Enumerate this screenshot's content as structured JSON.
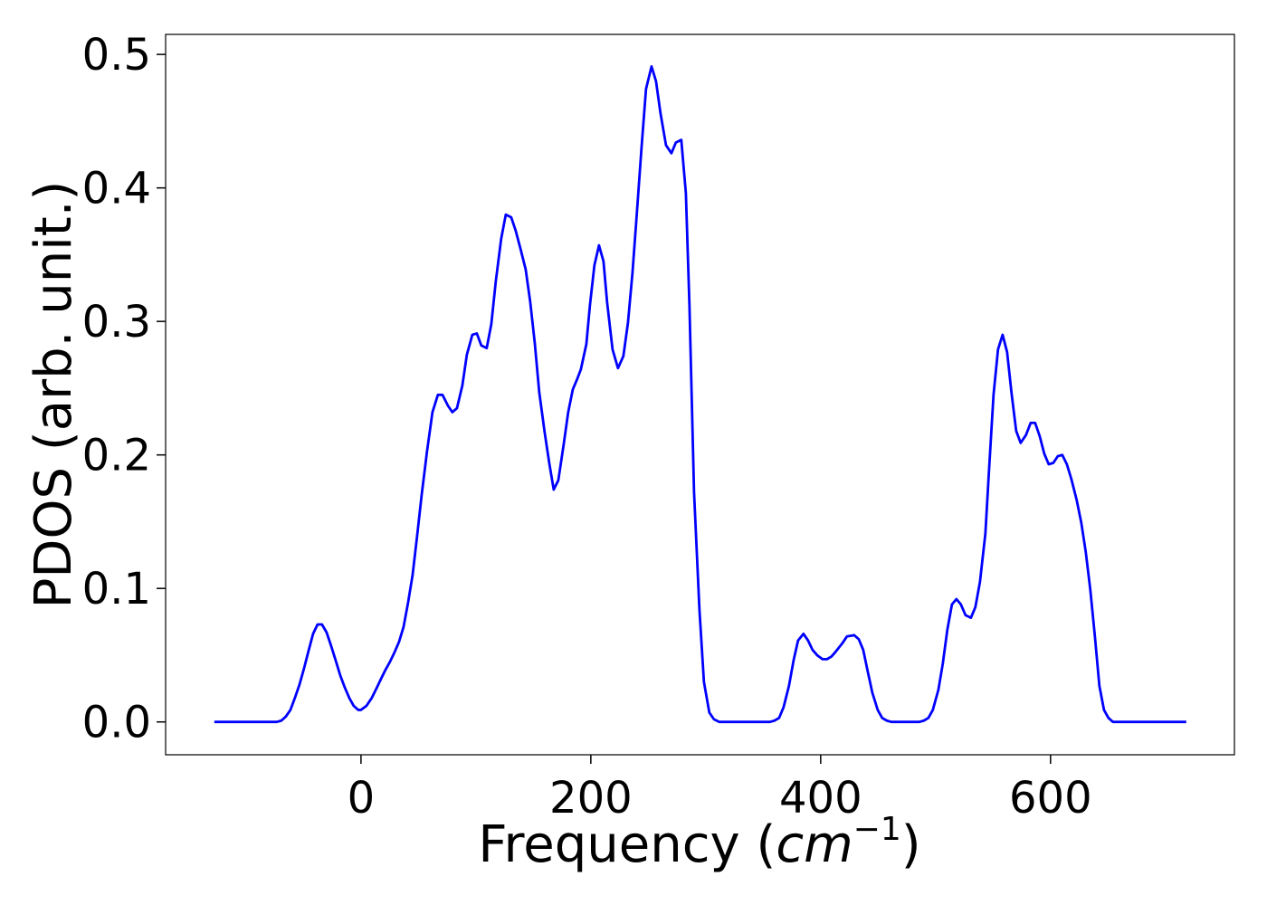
{
  "chart_data": {
    "type": "line",
    "x_label": {
      "text": "Frequency (",
      "unit": "cm",
      "exponent": "−1",
      "close": ")"
    },
    "y_label": "PDOS (arb. unit.)",
    "xlim": [
      -170,
      760
    ],
    "ylim": [
      -0.0246,
      0.515
    ],
    "xticks": [
      0,
      200,
      400,
      600
    ],
    "yticks": [
      {
        "value": 0,
        "label": "0.0"
      },
      0.1,
      0.2,
      0.3,
      0.4,
      0.5
    ],
    "x": [
      -127.6,
      -73.2,
      -69.3,
      -65.4,
      -61.4,
      -57.5,
      -53.5,
      -49.6,
      -45.7,
      -41.7,
      -37.8,
      -33.9,
      -29.9,
      -26.0,
      -22.0,
      -18.1,
      -14.2,
      -10.2,
      -6.3,
      -2.4,
      0,
      4.7,
      9.4,
      13.4,
      17.3,
      21.3,
      25.2,
      29.1,
      33.1,
      37.0,
      40.9,
      44.9,
      48.8,
      52.8,
      57.5,
      62.2,
      66.9,
      70.9,
      75.6,
      79.5,
      83.5,
      88.2,
      92.1,
      96.9,
      100.8,
      104.7,
      109.4,
      113.4,
      117.3,
      122.0,
      126.0,
      130.7,
      134.6,
      138.6,
      143.3,
      147.2,
      151.2,
      155.1,
      159.8,
      163.8,
      167.7,
      171.7,
      176.4,
      180.3,
      184.3,
      188.2,
      191.3,
      196.1,
      199.2,
      203.1,
      207.1,
      211.0,
      214.2,
      218.9,
      223.6,
      228.3,
      232.3,
      236.2,
      240.2,
      244.1,
      248.0,
      252.8,
      256.7,
      260.6,
      265.4,
      270.1,
      274.0,
      278.7,
      282.7,
      285.8,
      289.8,
      294.5,
      298.4,
      303.1,
      307.1,
      311.8,
      355.9,
      359.8,
      363.8,
      367.7,
      372.4,
      376.4,
      380.3,
      385.0,
      389.0,
      392.9,
      396.9,
      401.6,
      405.5,
      409.4,
      413.4,
      418.9,
      422.8,
      429.1,
      433.1,
      437.0,
      440.9,
      444.9,
      449.6,
      453.5,
      457.5,
      461.4,
      485.8,
      489.8,
      493.7,
      497.6,
      502.4,
      506.3,
      510.2,
      514.2,
      518.1,
      522.0,
      526.0,
      530.7,
      534.6,
      538.6,
      543.3,
      546.5,
      550.4,
      554.3,
      558.3,
      562.2,
      566.1,
      570.1,
      574.0,
      578.7,
      582.7,
      586.6,
      590.6,
      594.5,
      598.4,
      602.4,
      606.3,
      610.2,
      614.2,
      618.1,
      622.8,
      626.8,
      630.7,
      634.6,
      638.6,
      642.5,
      646.5,
      650.4,
      654.3,
      718.1
    ],
    "series": [
      {
        "color": "#0000ff",
        "values": [
          0,
          0,
          0.001,
          0.004,
          0.009,
          0.018,
          0.028,
          0.04,
          0.053,
          0.066,
          0.073,
          0.073,
          0.067,
          0.057,
          0.046,
          0.035,
          0.026,
          0.018,
          0.012,
          0.009,
          0.009,
          0.012,
          0.018,
          0.025,
          0.032,
          0.039,
          0.045,
          0.052,
          0.06,
          0.071,
          0.089,
          0.11,
          0.139,
          0.17,
          0.203,
          0.232,
          0.245,
          0.245,
          0.237,
          0.232,
          0.235,
          0.252,
          0.275,
          0.29,
          0.291,
          0.282,
          0.28,
          0.298,
          0.33,
          0.362,
          0.38,
          0.378,
          0.368,
          0.355,
          0.339,
          0.315,
          0.284,
          0.247,
          0.217,
          0.194,
          0.174,
          0.181,
          0.208,
          0.232,
          0.249,
          0.257,
          0.264,
          0.283,
          0.312,
          0.342,
          0.357,
          0.345,
          0.314,
          0.279,
          0.265,
          0.274,
          0.299,
          0.336,
          0.383,
          0.43,
          0.474,
          0.491,
          0.48,
          0.456,
          0.432,
          0.426,
          0.434,
          0.436,
          0.396,
          0.312,
          0.172,
          0.084,
          0.03,
          0.007,
          0.002,
          0,
          0,
          0.001,
          0.003,
          0.011,
          0.027,
          0.046,
          0.061,
          0.066,
          0.061,
          0.054,
          0.05,
          0.047,
          0.047,
          0.049,
          0.053,
          0.059,
          0.064,
          0.065,
          0.062,
          0.054,
          0.038,
          0.022,
          0.009,
          0.003,
          0.001,
          0,
          0,
          0.001,
          0.003,
          0.009,
          0.024,
          0.044,
          0.069,
          0.088,
          0.092,
          0.088,
          0.08,
          0.078,
          0.086,
          0.105,
          0.141,
          0.189,
          0.245,
          0.279,
          0.29,
          0.277,
          0.246,
          0.218,
          0.209,
          0.215,
          0.224,
          0.224,
          0.214,
          0.201,
          0.193,
          0.194,
          0.199,
          0.2,
          0.193,
          0.182,
          0.166,
          0.149,
          0.127,
          0.099,
          0.064,
          0.027,
          0.009,
          0.003,
          0,
          0
        ]
      }
    ]
  }
}
